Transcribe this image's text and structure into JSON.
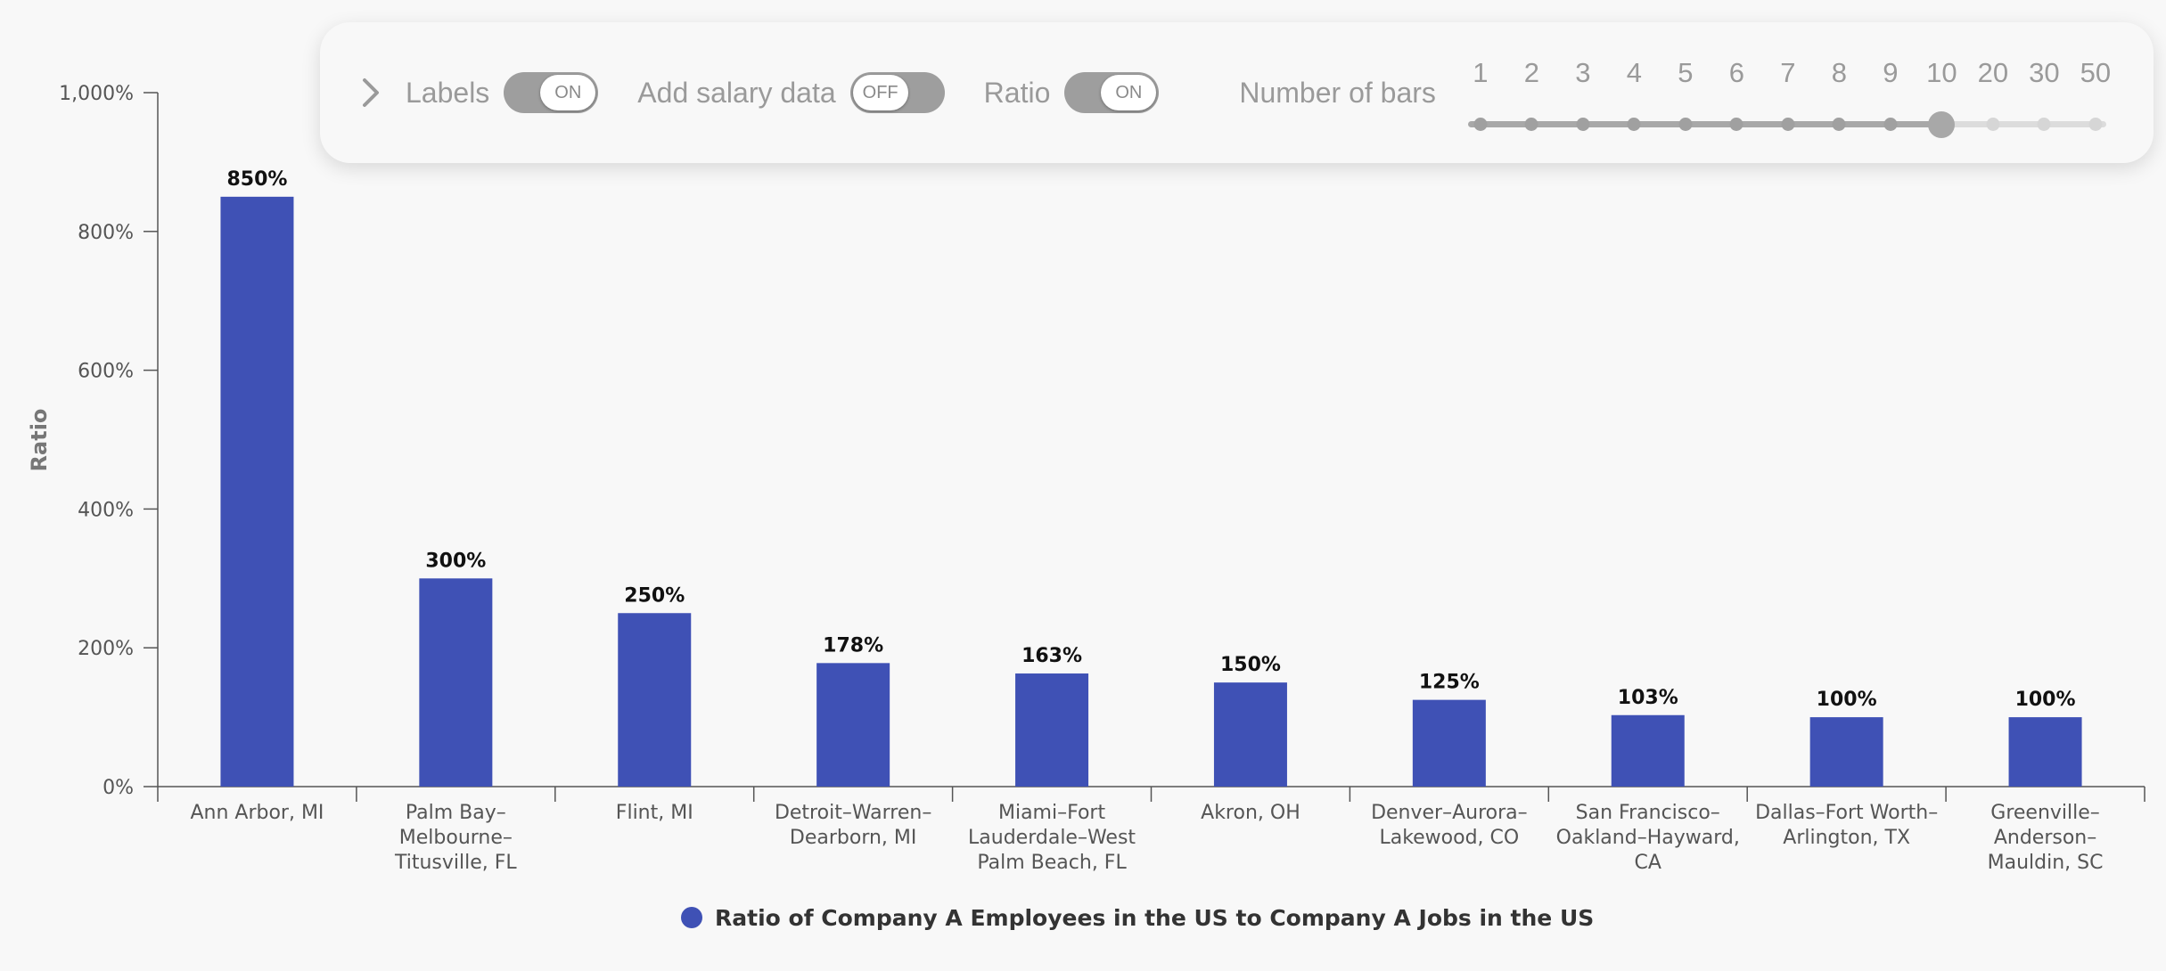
{
  "toolbar": {
    "labels_label": "Labels",
    "labels_state": "ON",
    "salary_label": "Add salary data",
    "salary_state": "OFF",
    "ratio_label": "Ratio",
    "ratio_state": "ON",
    "bars_label": "Number of bars",
    "bar_options": [
      "1",
      "2",
      "3",
      "4",
      "5",
      "6",
      "7",
      "8",
      "9",
      "10",
      "20",
      "30",
      "50"
    ],
    "bars_selected": "10"
  },
  "chart_data": {
    "type": "bar",
    "ylabel": "Ratio",
    "xlabel": "",
    "ylim": [
      0,
      1000
    ],
    "y_ticks": [
      "0%",
      "200%",
      "400%",
      "600%",
      "800%",
      "1,000%"
    ],
    "categories": [
      [
        "Ann Arbor, MI"
      ],
      [
        "Palm Bay–",
        "Melbourne–",
        "Titusville, FL"
      ],
      [
        "Flint, MI"
      ],
      [
        "Detroit–Warren–",
        "Dearborn, MI"
      ],
      [
        "Miami–Fort",
        "Lauderdale–West",
        "Palm Beach, FL"
      ],
      [
        "Akron, OH"
      ],
      [
        "Denver–Aurora–",
        "Lakewood, CO"
      ],
      [
        "San Francisco–",
        "Oakland–Hayward,",
        "CA"
      ],
      [
        "Dallas–Fort Worth–",
        "Arlington, TX"
      ],
      [
        "Greenville–",
        "Anderson–",
        "Mauldin, SC"
      ]
    ],
    "series": [
      {
        "name": "Ratio of Company A Employees in the US to Company A Jobs in the US",
        "values": [
          850,
          300,
          250,
          178,
          163,
          150,
          125,
          103,
          100,
          100
        ],
        "labels": [
          "850%",
          "300%",
          "250%",
          "178%",
          "163%",
          "150%",
          "125%",
          "103%",
          "100%",
          "100%"
        ],
        "color": "#3f51b5"
      }
    ],
    "legend_position": "bottom-center",
    "grid": false
  }
}
